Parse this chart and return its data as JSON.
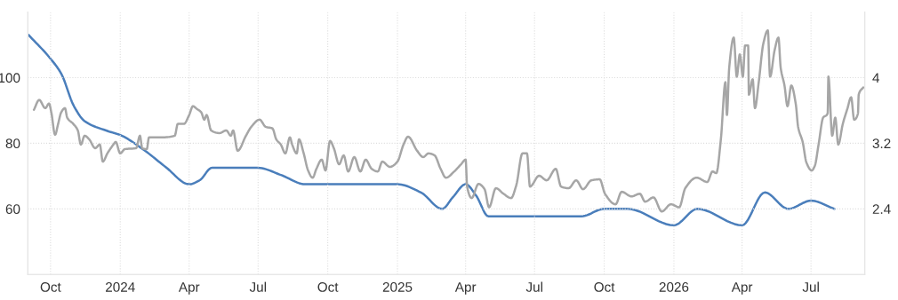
{
  "chart_data": {
    "type": "line",
    "grid": true,
    "marker": "none",
    "line_style": "solid",
    "xlim": [
      "2023-09-01",
      "2026-09-10"
    ],
    "xticks": [
      {
        "value": "2023-10-01",
        "label": "Oct"
      },
      {
        "value": "2024-01-01",
        "label": "2024"
      },
      {
        "value": "2024-04-01",
        "label": "Apr"
      },
      {
        "value": "2024-07-01",
        "label": "Jul"
      },
      {
        "value": "2024-10-01",
        "label": "Oct"
      },
      {
        "value": "2025-01-01",
        "label": "2025"
      },
      {
        "value": "2025-04-01",
        "label": "Apr"
      },
      {
        "value": "2025-07-01",
        "label": "Jul"
      },
      {
        "value": "2025-10-01",
        "label": "Oct"
      },
      {
        "value": "2026-01-01",
        "label": "2026"
      },
      {
        "value": "2026-04-01",
        "label": "Apr"
      },
      {
        "value": "2026-07-01",
        "label": "Jul"
      }
    ],
    "ylim": [
      40,
      120
    ],
    "yticks": [
      60,
      80,
      100
    ],
    "y2lim": [
      1.6,
      4.8
    ],
    "y2ticks": [
      2.4,
      3.2,
      4
    ],
    "series": [
      {
        "color": "#a6a6a6",
        "axis": "y",
        "x": [
          "2023-09-09",
          "2023-09-16",
          "2023-09-24",
          "2023-09-29",
          "2023-10-02",
          "2023-10-07",
          "2023-10-11",
          "2023-10-15",
          "2023-10-20",
          "2023-10-23",
          "2023-10-31",
          "2023-11-06",
          "2023-11-10",
          "2023-11-15",
          "2023-11-21",
          "2023-11-29",
          "2023-12-05",
          "2023-12-09",
          "2023-12-15",
          "2023-12-23",
          "2023-12-26",
          "2024-01-01",
          "2024-01-07",
          "2024-01-22",
          "2024-01-27",
          "2024-01-30",
          "2024-02-05",
          "2024-02-08",
          "2024-02-25",
          "2024-03-13",
          "2024-03-17",
          "2024-03-25",
          "2024-04-01",
          "2024-04-06",
          "2024-04-11",
          "2024-04-17",
          "2024-04-21",
          "2024-04-24",
          "2024-04-30",
          "2024-05-11",
          "2024-05-20",
          "2024-05-26",
          "2024-05-29",
          "2024-06-04",
          "2024-06-15",
          "2024-06-22",
          "2024-07-03",
          "2024-07-11",
          "2024-07-20",
          "2024-07-25",
          "2024-07-31",
          "2024-08-06",
          "2024-08-12",
          "2024-08-15",
          "2024-08-21",
          "2024-08-24",
          "2024-08-30",
          "2024-09-05",
          "2024-09-11",
          "2024-09-16",
          "2024-09-23",
          "2024-09-28",
          "2024-10-04",
          "2024-10-09",
          "2024-10-16",
          "2024-10-22",
          "2024-10-28",
          "2024-11-05",
          "2024-11-13",
          "2024-11-20",
          "2024-11-28",
          "2024-12-06",
          "2024-12-12",
          "2024-12-22",
          "2025-01-01",
          "2025-01-09",
          "2025-01-15",
          "2025-01-27",
          "2025-02-04",
          "2025-02-11",
          "2025-02-19",
          "2025-02-27",
          "2025-03-06",
          "2025-03-17",
          "2025-03-26",
          "2025-04-01",
          "2025-04-03",
          "2025-04-09",
          "2025-04-18",
          "2025-04-26",
          "2025-05-02",
          "2025-05-11",
          "2025-05-21",
          "2025-05-31",
          "2025-06-07",
          "2025-06-15",
          "2025-06-21",
          "2025-06-25",
          "2025-07-07",
          "2025-07-17",
          "2025-07-29",
          "2025-08-05",
          "2025-08-15",
          "2025-08-25",
          "2025-09-03",
          "2025-09-14",
          "2025-09-25",
          "2025-10-02",
          "2025-10-16",
          "2025-10-24",
          "2025-11-06",
          "2025-11-17",
          "2025-11-24",
          "2025-12-05",
          "2025-12-16",
          "2025-12-28",
          "2026-01-08",
          "2026-01-16",
          "2026-01-31",
          "2026-02-14",
          "2026-02-21",
          "2026-02-26",
          "2026-03-04",
          "2026-03-10",
          "2026-03-12",
          "2026-03-15",
          "2026-03-21",
          "2026-03-25",
          "2026-03-29",
          "2026-04-02",
          "2026-04-05",
          "2026-04-09",
          "2026-04-10",
          "2026-04-15",
          "2026-04-18",
          "2026-04-23",
          "2026-04-29",
          "2026-05-05",
          "2026-05-08",
          "2026-05-14",
          "2026-05-19",
          "2026-05-22",
          "2026-05-27",
          "2026-05-31",
          "2026-06-05",
          "2026-06-11",
          "2026-06-14",
          "2026-06-20",
          "2026-06-25",
          "2026-07-02",
          "2026-07-06",
          "2026-07-11",
          "2026-07-17",
          "2026-07-23",
          "2026-07-24",
          "2026-07-29",
          "2026-08-02",
          "2026-08-06",
          "2026-08-12",
          "2026-08-18",
          "2026-08-23",
          "2026-08-27",
          "2026-09-01",
          "2026-09-02",
          "2026-09-08"
        ],
        "values": [
          90.2,
          93.2,
          90.7,
          92.1,
          89.4,
          82.6,
          85.9,
          89.4,
          90.7,
          87.8,
          85.9,
          83.9,
          79.6,
          82.3,
          81.2,
          78.5,
          79.6,
          74.4,
          76.9,
          79.6,
          80.4,
          76.9,
          78.2,
          78.5,
          82.3,
          78.5,
          78.2,
          81.8,
          81.8,
          82.3,
          85.9,
          85.9,
          88.6,
          91.3,
          90.5,
          89.4,
          87.2,
          88.6,
          83.9,
          83.1,
          83.9,
          82.3,
          83.9,
          77.7,
          82.3,
          85.0,
          87.2,
          85.0,
          84.5,
          81.2,
          79.6,
          76.9,
          81.8,
          79.6,
          76.9,
          81.2,
          77.1,
          71.7,
          69.5,
          72.2,
          75.0,
          71.7,
          80.7,
          78.5,
          73.6,
          76.3,
          71.4,
          75.8,
          71.4,
          75.0,
          72.2,
          71.4,
          74.4,
          72.8,
          74.4,
          79.6,
          82.0,
          77.7,
          75.8,
          76.9,
          76.3,
          72.2,
          69.5,
          71.4,
          73.6,
          75.0,
          66.8,
          63.3,
          67.6,
          66.0,
          60.5,
          66.3,
          64.6,
          63.3,
          67.3,
          76.9,
          76.9,
          66.8,
          70.1,
          68.7,
          72.2,
          66.8,
          66.3,
          68.7,
          66.0,
          68.7,
          69.0,
          64.6,
          61.4,
          65.2,
          63.8,
          64.6,
          62.2,
          63.5,
          59.2,
          61.4,
          60.5,
          66.3,
          69.5,
          68.2,
          71.4,
          70.9,
          81.2,
          98.6,
          88.6,
          103.0,
          112.2,
          100.3,
          107.1,
          100.3,
          109.8,
          109.8,
          94.8,
          99.5,
          90.7,
          98.6,
          110.3,
          114.4,
          100.3,
          108.4,
          112.2,
          103.0,
          97.6,
          91.3,
          97.6,
          91.8,
          85.0,
          80.4,
          74.1,
          71.7,
          73.1,
          79.6,
          87.8,
          89.1,
          100.3,
          82.3,
          87.8,
          79.6,
          85.9,
          90.5,
          94.0,
          87.2,
          89.1,
          94.8,
          97.0
        ]
      },
      {
        "color": "#4a7ebb",
        "axis": "y2",
        "x": [
          "2023-09-02",
          "2023-10-01",
          "2023-10-15",
          "2023-11-01",
          "2023-11-15",
          "2023-12-15",
          "2024-01-01",
          "2024-02-01",
          "2024-03-01",
          "2024-04-01",
          "2024-04-15",
          "2024-05-01",
          "2024-07-01",
          "2024-08-01",
          "2024-09-01",
          "2025-01-01",
          "2025-02-01",
          "2025-03-01",
          "2025-03-15",
          "2025-04-01",
          "2025-04-15",
          "2025-05-01",
          "2025-09-01",
          "2025-10-01",
          "2025-11-01",
          "2026-01-01",
          "2026-02-01",
          "2026-04-01",
          "2026-05-01",
          "2026-06-01",
          "2026-07-01",
          "2026-08-01"
        ],
        "values": [
          4.52,
          4.23,
          4.05,
          3.65,
          3.47,
          3.35,
          3.3,
          3.12,
          2.91,
          2.7,
          2.75,
          2.9,
          2.9,
          2.81,
          2.7,
          2.7,
          2.6,
          2.4,
          2.54,
          2.7,
          2.56,
          2.31,
          2.31,
          2.4,
          2.4,
          2.2,
          2.4,
          2.2,
          2.6,
          2.4,
          2.5,
          2.4
        ]
      }
    ]
  }
}
